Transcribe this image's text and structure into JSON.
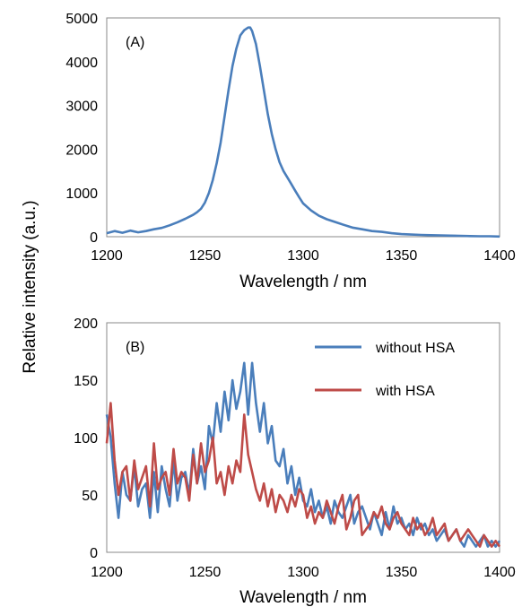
{
  "ylabel": "Relative intensity (a.u.)",
  "colors": {
    "blue": "#4a7ebb",
    "red": "#be4b48"
  },
  "chart_data": [
    {
      "type": "line",
      "panel_label": "(A)",
      "xlabel": "Wavelength / nm",
      "xlim": [
        1200,
        1400
      ],
      "ylim": [
        0,
        5000
      ],
      "xticks": [
        "1200",
        "1250",
        "1300",
        "1350",
        "1400"
      ],
      "yticks": [
        "0",
        "1000",
        "2000",
        "3000",
        "4000",
        "5000"
      ],
      "grid": false,
      "series": [
        {
          "color": "#4a7ebb",
          "x": [
            1200,
            1204,
            1208,
            1212,
            1216,
            1220,
            1224,
            1228,
            1232,
            1236,
            1240,
            1244,
            1246,
            1248,
            1250,
            1252,
            1254,
            1256,
            1258,
            1260,
            1262,
            1264,
            1266,
            1268,
            1270,
            1272,
            1273,
            1274,
            1276,
            1278,
            1280,
            1282,
            1284,
            1286,
            1288,
            1290,
            1292,
            1294,
            1296,
            1298,
            1300,
            1304,
            1308,
            1312,
            1316,
            1320,
            1325,
            1330,
            1335,
            1340,
            1345,
            1350,
            1355,
            1360,
            1365,
            1370,
            1375,
            1380,
            1385,
            1390,
            1395,
            1400
          ],
          "y": [
            80,
            130,
            90,
            140,
            100,
            130,
            170,
            200,
            260,
            330,
            410,
            500,
            560,
            640,
            780,
            1000,
            1300,
            1680,
            2150,
            2750,
            3350,
            3900,
            4300,
            4600,
            4720,
            4780,
            4780,
            4700,
            4400,
            3900,
            3350,
            2800,
            2350,
            2000,
            1700,
            1500,
            1350,
            1200,
            1050,
            900,
            760,
            600,
            480,
            400,
            340,
            280,
            210,
            170,
            130,
            110,
            80,
            60,
            50,
            40,
            35,
            30,
            25,
            20,
            15,
            10,
            10,
            5
          ]
        }
      ]
    },
    {
      "type": "line",
      "panel_label": "(B)",
      "xlabel": "Wavelength / nm",
      "xlim": [
        1200,
        1400
      ],
      "ylim": [
        0,
        200
      ],
      "xticks": [
        "1200",
        "1250",
        "1300",
        "1350",
        "1400"
      ],
      "yticks": [
        "0",
        "50",
        "100",
        "150",
        "200"
      ],
      "grid": false,
      "legend": "top-right",
      "series": [
        {
          "name": "without HSA",
          "color": "#4a7ebb",
          "x": [
            1200,
            1202,
            1204,
            1206,
            1208,
            1210,
            1212,
            1214,
            1216,
            1218,
            1220,
            1222,
            1224,
            1226,
            1228,
            1230,
            1232,
            1234,
            1236,
            1238,
            1240,
            1242,
            1244,
            1246,
            1248,
            1250,
            1252,
            1254,
            1256,
            1258,
            1260,
            1262,
            1264,
            1266,
            1268,
            1270,
            1272,
            1274,
            1276,
            1278,
            1280,
            1282,
            1284,
            1286,
            1288,
            1290,
            1292,
            1294,
            1296,
            1298,
            1300,
            1302,
            1304,
            1306,
            1308,
            1310,
            1312,
            1314,
            1316,
            1318,
            1320,
            1322,
            1324,
            1326,
            1328,
            1330,
            1332,
            1334,
            1336,
            1338,
            1340,
            1342,
            1344,
            1346,
            1348,
            1350,
            1352,
            1354,
            1356,
            1358,
            1360,
            1362,
            1364,
            1366,
            1368,
            1370,
            1372,
            1374,
            1376,
            1378,
            1380,
            1382,
            1384,
            1386,
            1388,
            1390,
            1392,
            1394,
            1396,
            1398,
            1400
          ],
          "y": [
            120,
            100,
            60,
            30,
            70,
            50,
            45,
            75,
            40,
            55,
            60,
            30,
            70,
            35,
            75,
            55,
            40,
            80,
            45,
            65,
            70,
            50,
            90,
            60,
            75,
            55,
            110,
            95,
            130,
            105,
            140,
            115,
            150,
            125,
            140,
            165,
            120,
            165,
            130,
            105,
            130,
            95,
            110,
            80,
            75,
            90,
            60,
            75,
            50,
            65,
            45,
            40,
            55,
            35,
            45,
            30,
            40,
            25,
            45,
            35,
            30,
            40,
            50,
            25,
            35,
            40,
            30,
            20,
            35,
            25,
            15,
            35,
            20,
            40,
            25,
            30,
            20,
            25,
            15,
            30,
            20,
            25,
            15,
            20,
            10,
            15,
            20,
            10,
            15,
            20,
            10,
            5,
            15,
            10,
            5,
            10,
            15,
            5,
            10,
            5,
            10
          ]
        },
        {
          "name": "with HSA",
          "color": "#be4b48",
          "x": [
            1200,
            1202,
            1204,
            1206,
            1208,
            1210,
            1212,
            1214,
            1216,
            1218,
            1220,
            1222,
            1224,
            1226,
            1228,
            1230,
            1232,
            1234,
            1236,
            1238,
            1240,
            1242,
            1244,
            1246,
            1248,
            1250,
            1252,
            1254,
            1256,
            1258,
            1260,
            1262,
            1264,
            1266,
            1268,
            1270,
            1272,
            1274,
            1276,
            1278,
            1280,
            1282,
            1284,
            1286,
            1288,
            1290,
            1292,
            1294,
            1296,
            1298,
            1300,
            1302,
            1304,
            1306,
            1308,
            1310,
            1312,
            1314,
            1316,
            1318,
            1320,
            1322,
            1324,
            1326,
            1328,
            1330,
            1332,
            1334,
            1336,
            1338,
            1340,
            1342,
            1344,
            1346,
            1348,
            1350,
            1352,
            1354,
            1356,
            1358,
            1360,
            1362,
            1364,
            1366,
            1368,
            1370,
            1372,
            1374,
            1376,
            1378,
            1380,
            1382,
            1384,
            1386,
            1388,
            1390,
            1392,
            1394,
            1396,
            1398,
            1400
          ],
          "y": [
            95,
            130,
            80,
            50,
            70,
            75,
            45,
            80,
            55,
            65,
            75,
            40,
            95,
            55,
            65,
            70,
            50,
            90,
            60,
            70,
            65,
            45,
            85,
            60,
            95,
            70,
            80,
            100,
            60,
            70,
            50,
            75,
            60,
            80,
            70,
            120,
            85,
            70,
            55,
            45,
            60,
            40,
            55,
            35,
            50,
            45,
            35,
            50,
            40,
            55,
            50,
            30,
            40,
            25,
            35,
            30,
            45,
            35,
            25,
            40,
            50,
            20,
            30,
            45,
            50,
            15,
            20,
            25,
            35,
            30,
            40,
            25,
            20,
            30,
            35,
            25,
            20,
            15,
            30,
            20,
            25,
            15,
            20,
            30,
            15,
            20,
            25,
            10,
            15,
            20,
            10,
            15,
            20,
            15,
            10,
            5,
            15,
            10,
            5,
            10,
            5
          ]
        }
      ]
    }
  ]
}
